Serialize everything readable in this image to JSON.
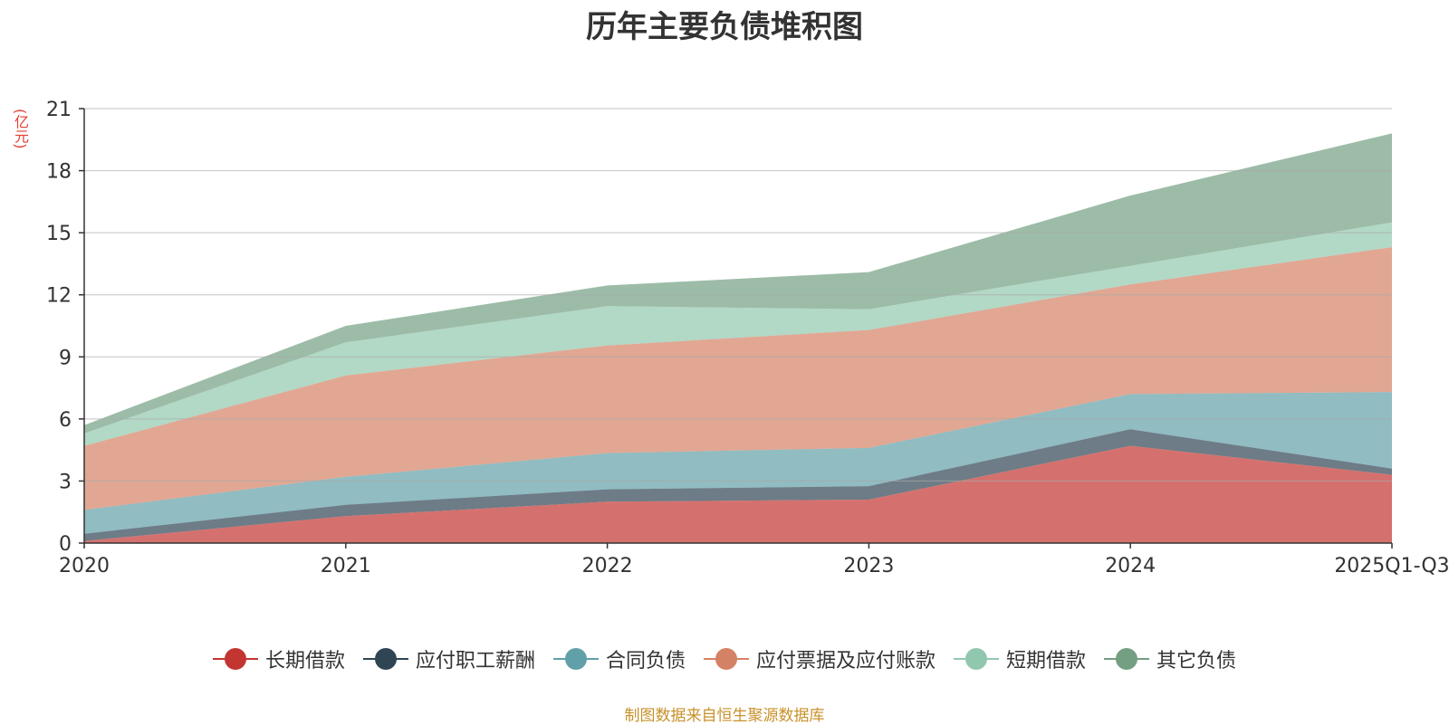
{
  "chart_data": {
    "type": "area",
    "stacked": true,
    "title": "历年主要负债堆积图",
    "ylabel": "(亿元)",
    "xlabel": "",
    "categories": [
      "2020",
      "2021",
      "2022",
      "2023",
      "2024",
      "2025Q1-Q3"
    ],
    "ylim": [
      0,
      21
    ],
    "yticks": [
      0,
      3,
      6,
      9,
      12,
      15,
      18,
      21
    ],
    "grid": true,
    "legend_position": "bottom",
    "series": [
      {
        "name": "长期借款",
        "values": [
          0.1,
          1.3,
          2.0,
          2.1,
          4.7,
          3.3
        ],
        "color": "#c23531"
      },
      {
        "name": "应付职工薪酬",
        "values": [
          0.35,
          0.55,
          0.6,
          0.65,
          0.8,
          0.3
        ],
        "color": "#2f4554"
      },
      {
        "name": "合同负债",
        "values": [
          1.15,
          1.35,
          1.75,
          1.85,
          1.7,
          3.7
        ],
        "color": "#61a0a8"
      },
      {
        "name": "应付票据及应付账款",
        "values": [
          3.1,
          4.9,
          5.2,
          5.7,
          5.3,
          7.0
        ],
        "color": "#d48265"
      },
      {
        "name": "短期借款",
        "values": [
          0.6,
          1.6,
          1.9,
          1.0,
          0.9,
          1.2
        ],
        "color": "#91c7ae"
      },
      {
        "name": "其它负债",
        "values": [
          0.4,
          0.8,
          1.0,
          1.8,
          3.4,
          4.3
        ],
        "color": "#749f83"
      }
    ]
  },
  "source": "制图数据来自恒生聚源数据库"
}
